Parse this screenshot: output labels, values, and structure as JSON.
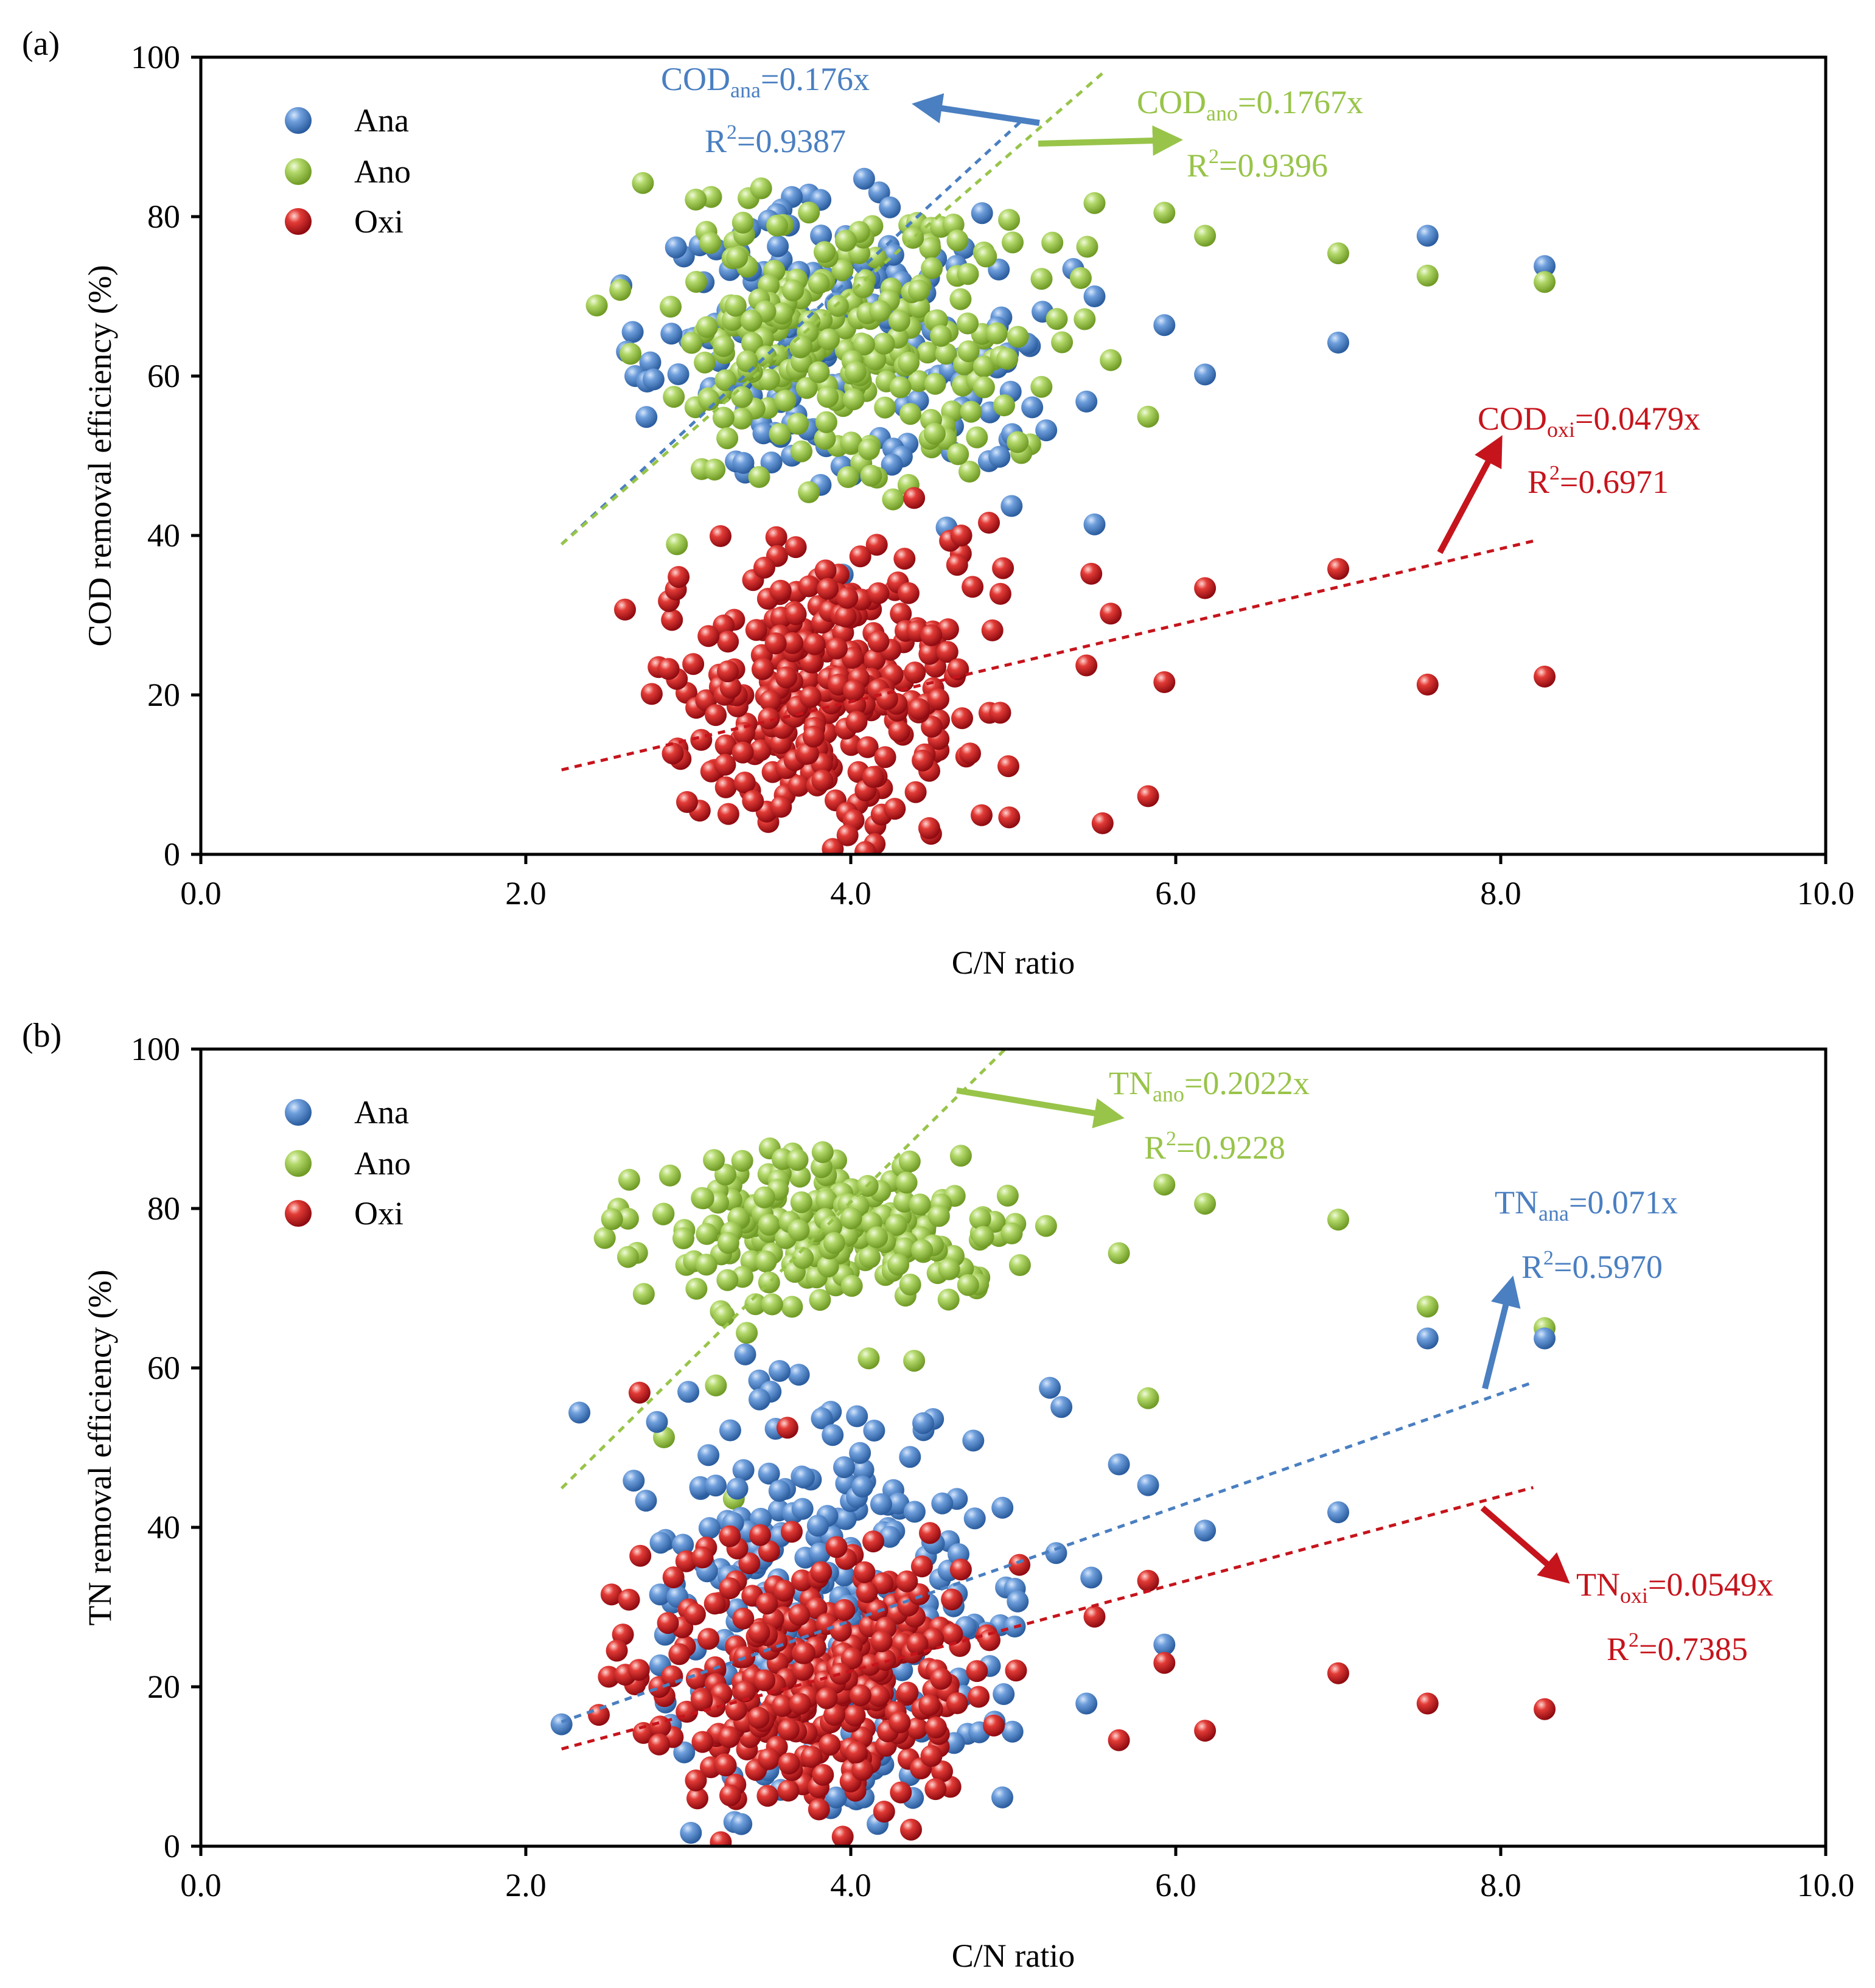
{
  "colors": {
    "ana": "#4a7fc1",
    "ano": "#98c449",
    "oxi": "#c6141c",
    "axis": "#000000"
  },
  "chart_data": [
    {
      "panel_label": "(a)",
      "type": "scatter",
      "xlabel": "C/N ratio",
      "ylabel": "COD removal efficiency (%)",
      "xlim": [
        0,
        10
      ],
      "ylim": [
        0,
        100
      ],
      "x_ticks": [
        "0.0",
        "2.0",
        "4.0",
        "6.0",
        "8.0",
        "10.0"
      ],
      "y_ticks": [
        "0",
        "20",
        "40",
        "60",
        "80",
        "100"
      ],
      "legend": {
        "position": "top-left",
        "entries": [
          "Ana",
          "Ano",
          "Oxi"
        ]
      },
      "series": [
        {
          "name": "Ana",
          "color": "#4a7fc1",
          "cluster": {
            "x_range": [
              2.2,
              5.8
            ],
            "y_range": [
              44,
              86
            ],
            "count": 200,
            "seed": 11
          },
          "points": [
            [
              7.0,
              64.2
            ],
            [
              7.55,
              77.6
            ],
            [
              8.27,
              73.8
            ],
            [
              5.93,
              66.4
            ],
            [
              6.18,
              60.2
            ],
            [
              5.5,
              41.4
            ],
            [
              5.45,
              56.8
            ],
            [
              4.99,
              43.7
            ],
            [
              4.59,
              41.0
            ],
            [
              3.95,
              35.1
            ],
            [
              5.5,
              70.0
            ]
          ]
        },
        {
          "name": "Ano",
          "color": "#98c449",
          "cluster": {
            "x_range": [
              2.2,
              5.7
            ],
            "y_range": [
              44,
              86
            ],
            "count": 260,
            "seed": 23
          },
          "points": [
            [
              7.0,
              75.4
            ],
            [
              7.55,
              72.6
            ],
            [
              8.27,
              71.8
            ],
            [
              6.18,
              77.6
            ],
            [
              5.93,
              80.5
            ],
            [
              5.83,
              54.9
            ],
            [
              5.6,
              62.0
            ],
            [
              5.5,
              81.7
            ],
            [
              4.66,
              50.2
            ],
            [
              2.93,
              38.9
            ],
            [
              3.24,
              52.2
            ]
          ]
        },
        {
          "name": "Oxi",
          "color": "#c6141c",
          "cluster": {
            "x_range": [
              2.2,
              5.4
            ],
            "y_range": [
              0,
              42
            ],
            "count": 300,
            "seed": 37
          },
          "points": [
            [
              7.0,
              35.8
            ],
            [
              7.55,
              21.3
            ],
            [
              8.27,
              22.3
            ],
            [
              6.18,
              33.4
            ],
            [
              5.93,
              21.6
            ],
            [
              5.83,
              7.3
            ],
            [
              5.6,
              30.2
            ],
            [
              5.55,
              3.9
            ],
            [
              5.48,
              35.2
            ],
            [
              5.45,
              23.7
            ],
            [
              4.85,
              41.6
            ],
            [
              4.68,
              40.0
            ],
            [
              4.39,
              44.7
            ],
            [
              4.09,
              0.3
            ],
            [
              3.98,
              2.4
            ]
          ]
        }
      ],
      "fits": [
        {
          "name": "Ana",
          "x_range": [
            2.22,
            5.05
          ],
          "y_range": [
            38.9,
            92.0
          ],
          "color": "#4a7fc1"
        },
        {
          "name": "Ano",
          "x_range": [
            2.22,
            5.55
          ],
          "y_range": [
            38.9,
            98.0
          ],
          "color": "#98c449"
        },
        {
          "name": "Oxi",
          "x_range": [
            2.22,
            8.2
          ],
          "y_range": [
            10.6,
            39.3
          ],
          "color": "#c6141c"
        }
      ],
      "annotations": [
        {
          "id": "cod-ana",
          "color": "#4a7fc1",
          "base": "COD",
          "sub": "ana",
          "tail": "=0.176x",
          "r2": "=0.9387"
        },
        {
          "id": "cod-ano",
          "color": "#98c449",
          "base": "COD",
          "sub": "ano",
          "tail": "=0.1767x",
          "r2": "=0.9396"
        },
        {
          "id": "cod-oxi",
          "color": "#c6141c",
          "base": "COD",
          "sub": "oxi",
          "tail": "=0.0479x",
          "r2": "=0.6971"
        }
      ]
    },
    {
      "panel_label": "(b)",
      "type": "scatter",
      "xlabel": "C/N ratio",
      "ylabel": "TN removal efficiency (%)",
      "xlim": [
        0,
        10
      ],
      "ylim": [
        0,
        100
      ],
      "x_ticks": [
        "0.0",
        "2.0",
        "4.0",
        "6.0",
        "8.0",
        "10.0"
      ],
      "y_ticks": [
        "0",
        "20",
        "40",
        "60",
        "80",
        "100"
      ],
      "legend": {
        "position": "top-left",
        "entries": [
          "Ana",
          "Ano",
          "Oxi"
        ]
      },
      "series": [
        {
          "name": "Ana",
          "color": "#4a7fc1",
          "cluster": {
            "x_range": [
              2.3,
              5.5
            ],
            "y_range": [
              1,
              62
            ],
            "count": 260,
            "seed": 51
          },
          "points": [
            [
              7.0,
              41.9
            ],
            [
              7.55,
              63.7
            ],
            [
              8.27,
              63.7
            ],
            [
              6.18,
              39.6
            ],
            [
              5.93,
              25.3
            ],
            [
              5.83,
              45.3
            ],
            [
              5.65,
              47.9
            ],
            [
              5.48,
              33.7
            ],
            [
              5.45,
              17.9
            ],
            [
              2.22,
              15.3
            ],
            [
              2.33,
              54.4
            ],
            [
              3.35,
              61.7
            ]
          ]
        },
        {
          "name": "Ano",
          "color": "#98c449",
          "cluster": {
            "x_range": [
              2.2,
              5.6
            ],
            "y_range": [
              66,
              88
            ],
            "count": 230,
            "seed": 67
          },
          "points": [
            [
              7.0,
              78.6
            ],
            [
              7.55,
              67.7
            ],
            [
              8.27,
              65.0
            ],
            [
              6.18,
              80.6
            ],
            [
              5.93,
              83.0
            ],
            [
              5.83,
              56.2
            ],
            [
              5.65,
              74.4
            ],
            [
              3.36,
              64.4
            ],
            [
              3.17,
              57.8
            ],
            [
              2.85,
              51.3
            ],
            [
              3.28,
              43.6
            ],
            [
              4.11,
              61.2
            ],
            [
              4.39,
              60.9
            ]
          ]
        },
        {
          "name": "Oxi",
          "color": "#c6141c",
          "cluster": {
            "x_range": [
              2.2,
              5.3
            ],
            "y_range": [
              0.5,
              42
            ],
            "count": 330,
            "seed": 83
          },
          "points": [
            [
              7.0,
              21.7
            ],
            [
              7.55,
              17.9
            ],
            [
              8.27,
              17.2
            ],
            [
              6.18,
              14.5
            ],
            [
              5.93,
              23.0
            ],
            [
              5.83,
              33.3
            ],
            [
              5.65,
              13.3
            ],
            [
              5.5,
              28.8
            ],
            [
              2.7,
              56.9
            ],
            [
              3.61,
              52.5
            ],
            [
              3.2,
              0.5
            ],
            [
              3.95,
              1.2
            ]
          ]
        }
      ],
      "fits": [
        {
          "name": "Ana",
          "x_range": [
            2.22,
            8.2
          ],
          "y_range": [
            15.6,
            58.2
          ],
          "color": "#4a7fc1"
        },
        {
          "name": "Ano",
          "x_range": [
            2.22,
            5.0
          ],
          "y_range": [
            44.9,
            101.0
          ],
          "color": "#98c449"
        },
        {
          "name": "Oxi",
          "x_range": [
            2.22,
            8.2
          ],
          "y_range": [
            12.2,
            45.0
          ],
          "color": "#c6141c"
        }
      ],
      "annotations": [
        {
          "id": "tn-ano",
          "color": "#98c449",
          "base": "TN",
          "sub": "ano",
          "tail": "=0.2022x",
          "r2": "=0.9228"
        },
        {
          "id": "tn-ana",
          "color": "#4a7fc1",
          "base": "TN",
          "sub": "ana",
          "tail": "=0.071x",
          "r2": "=0.5970"
        },
        {
          "id": "tn-oxi",
          "color": "#c6141c",
          "base": "TN",
          "sub": "oxi",
          "tail": "=0.0549x",
          "r2": "=0.7385"
        }
      ]
    }
  ]
}
